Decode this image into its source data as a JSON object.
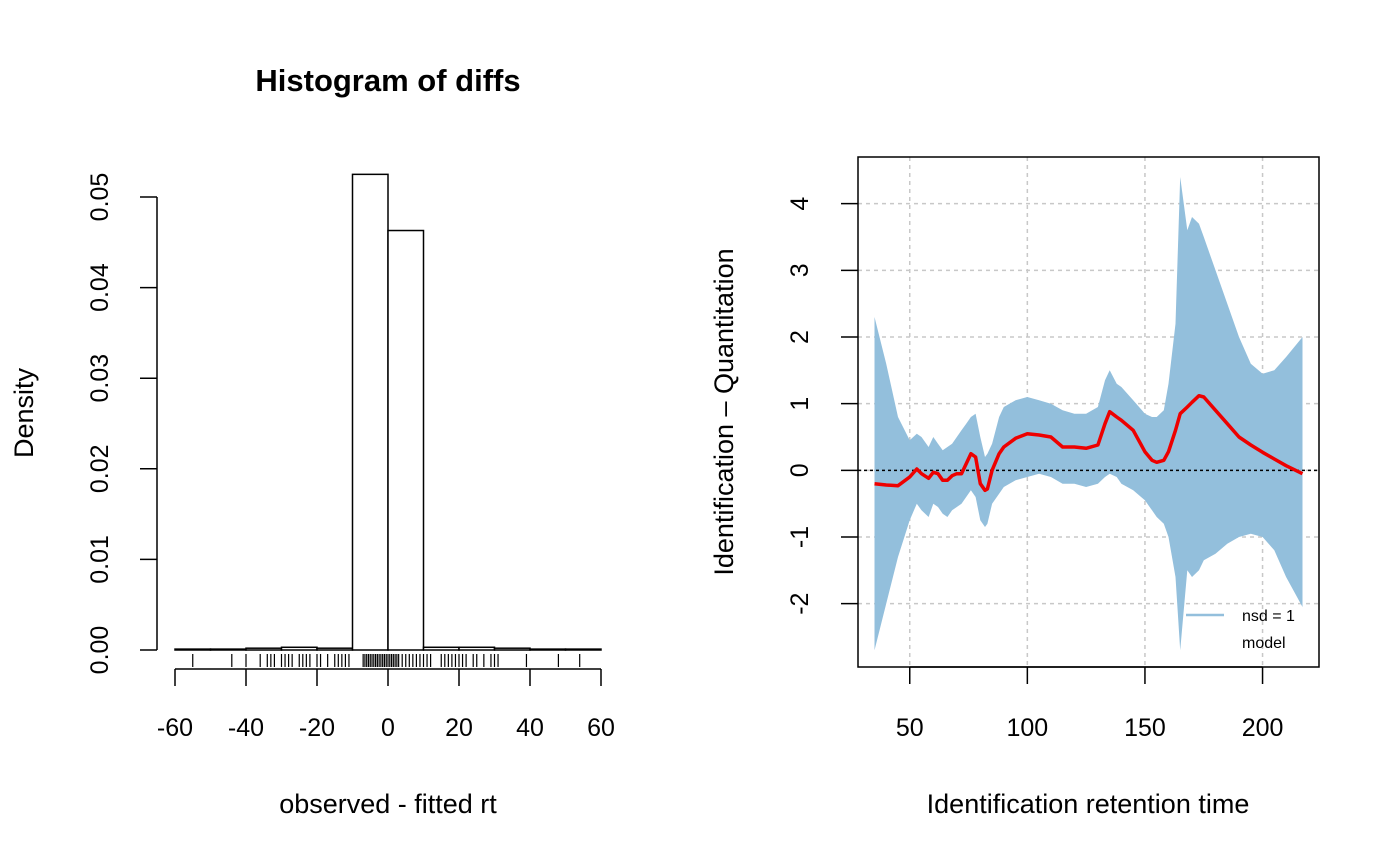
{
  "chart_data": [
    {
      "type": "histogram",
      "title": "Histogram of diffs",
      "xlabel": "observed - fitted rt",
      "ylabel": "Density",
      "xlim": [
        -60,
        60
      ],
      "ylim": [
        0,
        0.05
      ],
      "x_ticks": [
        "-60",
        "-40",
        "-20",
        "0",
        "20",
        "40",
        "60"
      ],
      "y_ticks": [
        "0.00",
        "0.01",
        "0.02",
        "0.03",
        "0.04",
        "0.05"
      ],
      "bins": [
        {
          "from": -60,
          "to": -50,
          "density": 0.0001
        },
        {
          "from": -50,
          "to": -40,
          "density": 0.0001
        },
        {
          "from": -40,
          "to": -30,
          "density": 0.0002
        },
        {
          "from": -30,
          "to": -20,
          "density": 0.0003
        },
        {
          "from": -20,
          "to": -10,
          "density": 0.0002
        },
        {
          "from": -10,
          "to": 0,
          "density": 0.0525
        },
        {
          "from": 0,
          "to": 10,
          "density": 0.0463
        },
        {
          "from": 10,
          "to": 20,
          "density": 0.0003
        },
        {
          "from": 20,
          "to": 30,
          "density": 0.0003
        },
        {
          "from": 30,
          "to": 40,
          "density": 0.0002
        },
        {
          "from": 40,
          "to": 50,
          "density": 0.0001
        },
        {
          "from": 50,
          "to": 60,
          "density": 0.0001
        }
      ],
      "rug": [
        -55,
        -44,
        -40,
        -36,
        -34,
        -33,
        -32,
        -30,
        -29,
        -28,
        -27,
        -25,
        -24,
        -23,
        -22,
        -20,
        -19,
        -17,
        -15,
        -14,
        -13,
        -12,
        -11,
        -7,
        -6.5,
        -6,
        -5.5,
        -5,
        -4.5,
        -4,
        -3.5,
        -3,
        -2.5,
        -2,
        -1.5,
        -1,
        -0.5,
        0,
        0.5,
        1,
        1.5,
        2,
        2.5,
        3,
        4,
        5,
        6,
        7,
        8,
        9,
        10,
        11,
        12,
        15,
        16,
        17,
        18,
        19,
        20,
        21,
        22,
        24,
        25,
        27,
        29,
        30,
        31,
        39,
        48,
        54
      ]
    },
    {
      "type": "line",
      "title": "",
      "xlabel": "Identification retention time",
      "ylabel": "Identification – Quantitation",
      "xlim": [
        28,
        224
      ],
      "ylim": [
        -2.95,
        4.7
      ],
      "x_ticks": [
        "50",
        "100",
        "150",
        "200"
      ],
      "y_ticks": [
        "-2",
        "-1",
        "0",
        "1",
        "2",
        "3",
        "4"
      ],
      "grid": true,
      "reference_line": 0,
      "legend": {
        "position": "bottom-right",
        "entries": [
          {
            "label": "nsd = 1",
            "color": "#93BFDC"
          },
          {
            "label": "model",
            "color": ""
          }
        ]
      },
      "colors": {
        "band": "#93BFDC",
        "model": "#EE0000"
      },
      "x": [
        35,
        40,
        45,
        50,
        53,
        55,
        58,
        60,
        62,
        64,
        66,
        68,
        70,
        72,
        74,
        76,
        78,
        80,
        82,
        83,
        85,
        88,
        90,
        95,
        100,
        105,
        110,
        115,
        120,
        125,
        130,
        133,
        135,
        138,
        140,
        145,
        150,
        153,
        155,
        158,
        160,
        163,
        165,
        168,
        170,
        173,
        175,
        180,
        185,
        190,
        195,
        200,
        205,
        210,
        217
      ],
      "series": [
        {
          "name": "model",
          "values": [
            -0.2,
            -0.22,
            -0.23,
            -0.1,
            0.02,
            -0.05,
            -0.12,
            -0.03,
            -0.05,
            -0.15,
            -0.15,
            -0.08,
            -0.05,
            -0.05,
            0.1,
            0.25,
            0.2,
            -0.2,
            -0.3,
            -0.28,
            0.0,
            0.25,
            0.35,
            0.48,
            0.55,
            0.53,
            0.5,
            0.35,
            0.35,
            0.33,
            0.38,
            0.7,
            0.88,
            0.8,
            0.75,
            0.6,
            0.28,
            0.15,
            0.12,
            0.15,
            0.28,
            0.6,
            0.85,
            0.95,
            1.02,
            1.12,
            1.1,
            0.9,
            0.7,
            0.5,
            0.38,
            0.27,
            0.17,
            0.07,
            -0.05
          ]
        },
        {
          "name": "nsd = 1",
          "upper": [
            2.3,
            1.6,
            0.8,
            0.45,
            0.55,
            0.5,
            0.35,
            0.5,
            0.4,
            0.3,
            0.35,
            0.4,
            0.5,
            0.6,
            0.7,
            0.8,
            0.85,
            0.5,
            0.2,
            0.25,
            0.4,
            0.8,
            0.95,
            1.05,
            1.1,
            1.05,
            1.0,
            0.9,
            0.85,
            0.85,
            0.95,
            1.35,
            1.5,
            1.3,
            1.25,
            1.05,
            0.85,
            0.8,
            0.8,
            0.9,
            1.3,
            2.2,
            4.4,
            3.6,
            3.8,
            3.7,
            3.5,
            3.0,
            2.5,
            2.0,
            1.6,
            1.45,
            1.5,
            1.7,
            2.0
          ],
          "lower": [
            -2.7,
            -2.0,
            -1.3,
            -0.75,
            -0.5,
            -0.6,
            -0.7,
            -0.5,
            -0.55,
            -0.65,
            -0.7,
            -0.6,
            -0.55,
            -0.5,
            -0.4,
            -0.3,
            -0.4,
            -0.75,
            -0.85,
            -0.8,
            -0.5,
            -0.35,
            -0.25,
            -0.15,
            -0.1,
            -0.05,
            -0.1,
            -0.2,
            -0.2,
            -0.25,
            -0.2,
            -0.1,
            -0.05,
            -0.1,
            -0.2,
            -0.3,
            -0.45,
            -0.6,
            -0.7,
            -0.8,
            -1.0,
            -1.6,
            -2.7,
            -1.5,
            -1.6,
            -1.5,
            -1.35,
            -1.25,
            -1.1,
            -1.0,
            -0.95,
            -1.0,
            -1.2,
            -1.6,
            -2.05
          ]
        }
      ]
    }
  ]
}
